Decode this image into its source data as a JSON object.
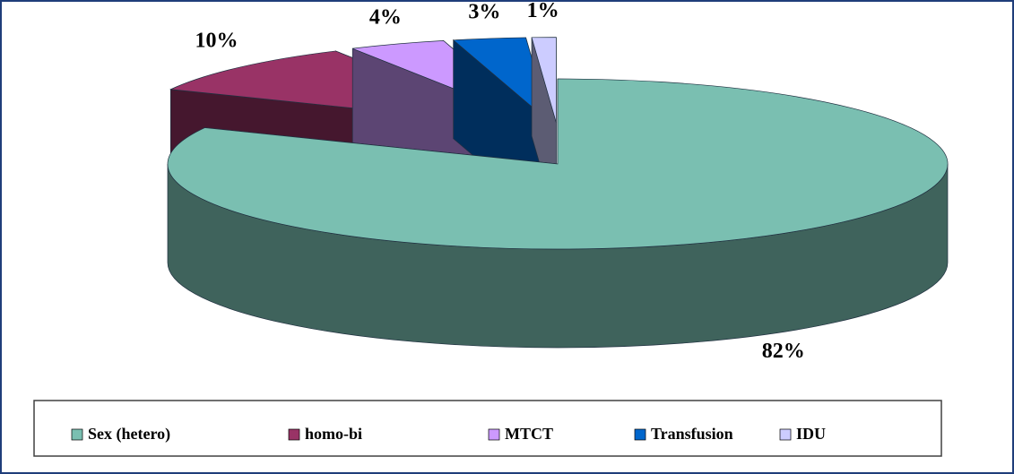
{
  "chart_data": {
    "type": "pie3d",
    "categories": [
      "Sex (hetero)",
      "homo-bi",
      "MTCT",
      "Transfusion",
      "IDU"
    ],
    "values": [
      82,
      10,
      4,
      3,
      1
    ],
    "value_labels": [
      "82%",
      "10%",
      "4%",
      "3%",
      "1%"
    ],
    "colors": [
      "#7abfb1",
      "#993366",
      "#cc99ff",
      "#0066cc",
      "#ccccff"
    ],
    "legend": "bottom"
  }
}
